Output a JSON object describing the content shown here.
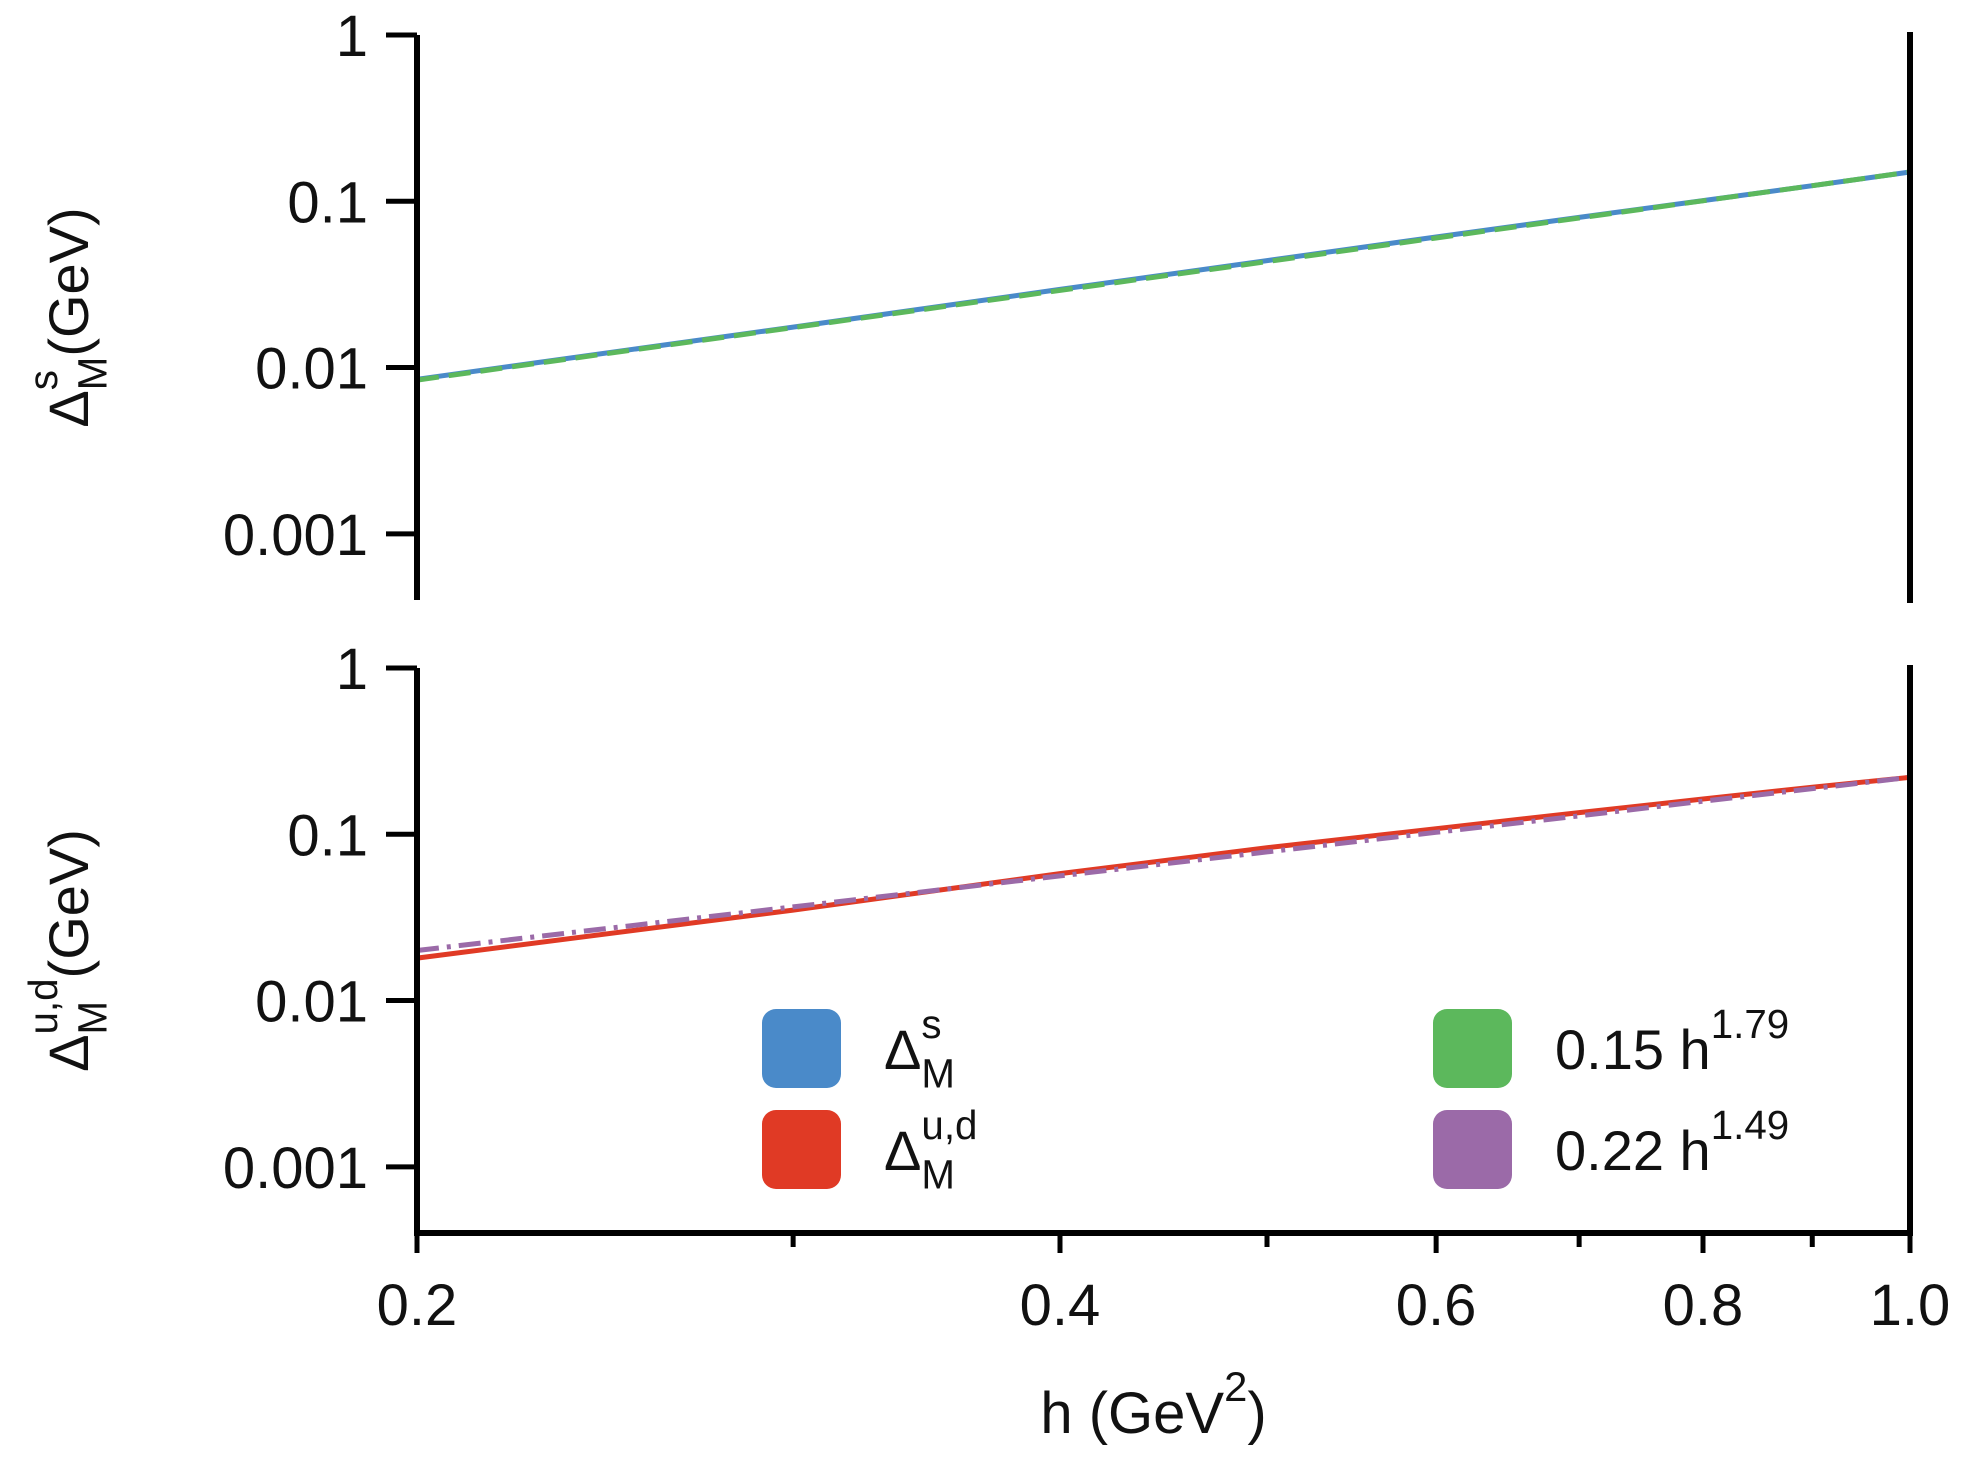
{
  "chart_data": [
    {
      "type": "line",
      "ylabel": [
        {
          "text": "Δ",
          "role": "main"
        },
        {
          "text": "s",
          "role": "sup"
        },
        {
          "text": "M",
          "role": "sub"
        },
        {
          "text": " (GeV)",
          "role": "main"
        }
      ],
      "x": [
        0.2,
        0.3,
        0.4,
        0.5,
        0.6,
        0.7,
        0.8,
        0.9,
        1.0
      ],
      "series": [
        {
          "name": [
            {
              "text": "Δ",
              "role": "main"
            },
            {
              "text": "s",
              "role": "sup"
            },
            {
              "text": "M",
              "role": "sub"
            }
          ],
          "color": "#4a8ac9",
          "linestyle": "solid",
          "values": [
            0.0085,
            0.0175,
            0.0295,
            0.044,
            0.061,
            0.08,
            0.101,
            0.124,
            0.15
          ]
        },
        {
          "name": [
            {
              "text": "0.15 h",
              "role": "main"
            },
            {
              "text": "1.79",
              "role": "sup"
            }
          ],
          "color": "#5cb85c",
          "linestyle": "dashed",
          "values": [
            0.0084,
            0.0174,
            0.0291,
            0.0434,
            0.0601,
            0.0793,
            0.1007,
            0.124,
            0.15
          ]
        }
      ],
      "xscale": "log",
      "yscale": "log",
      "xlim": [
        0.2,
        1.0
      ],
      "ylim": [
        0.0004,
        1
      ],
      "yticks": [
        1,
        0.1,
        0.01,
        0.001
      ]
    },
    {
      "type": "line",
      "ylabel": [
        {
          "text": "Δ",
          "role": "main"
        },
        {
          "text": "u,d",
          "role": "sup"
        },
        {
          "text": "M",
          "role": "sub"
        },
        {
          "text": " (GeV)",
          "role": "main"
        }
      ],
      "xlabel": [
        {
          "text": "h (GeV",
          "role": "main"
        },
        {
          "text": "2",
          "role": "sup"
        },
        {
          "text": ")",
          "role": "main"
        }
      ],
      "x": [
        0.2,
        0.3,
        0.4,
        0.5,
        0.6,
        0.7,
        0.8,
        0.9,
        1.0
      ],
      "series": [
        {
          "name": [
            {
              "text": "Δ",
              "role": "main"
            },
            {
              "text": "u,d",
              "role": "sup"
            },
            {
              "text": "M",
              "role": "sub"
            }
          ],
          "color": "#e03a25",
          "linestyle": "solid",
          "values": [
            0.018,
            0.035,
            0.058,
            0.083,
            0.108,
            0.135,
            0.163,
            0.192,
            0.22
          ]
        },
        {
          "name": [
            {
              "text": "0.22 h",
              "role": "main"
            },
            {
              "text": "1.49",
              "role": "sup"
            }
          ],
          "color": "#9b6aa8",
          "linestyle": "dashdot",
          "values": [
            0.02,
            0.0366,
            0.0562,
            0.0783,
            0.1028,
            0.129,
            0.158,
            0.188,
            0.22
          ]
        }
      ],
      "xscale": "log",
      "yscale": "log",
      "xlim": [
        0.2,
        1.0
      ],
      "ylim": [
        0.0004,
        1
      ],
      "xticks": [
        0.2,
        0.4,
        0.6,
        0.8,
        {
          "value": 1.0,
          "label": "1.0"
        }
      ],
      "xminorticks": [
        0.3,
        0.5,
        0.7,
        0.9
      ],
      "yticks": [
        1,
        0.1,
        0.01,
        0.001
      ]
    }
  ]
}
